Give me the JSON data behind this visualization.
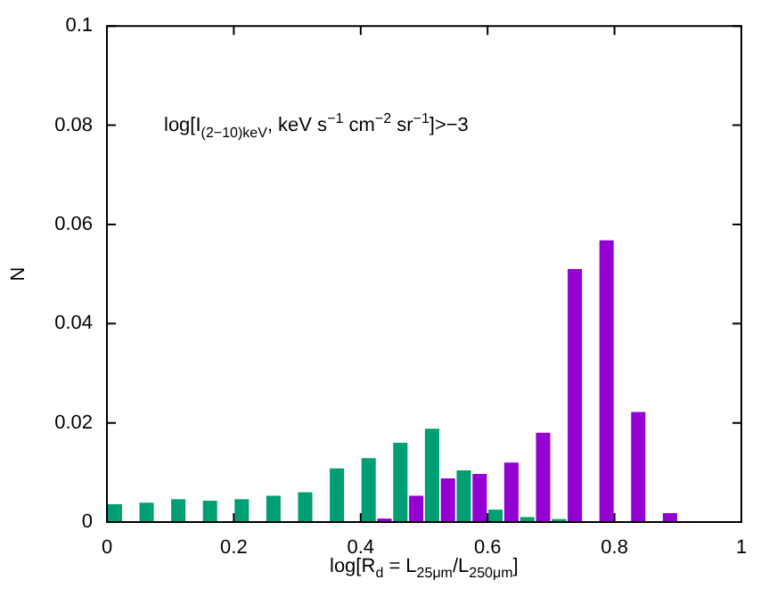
{
  "chart_data": {
    "type": "bar",
    "xlabel": "log[R$_{d}$ = L$_{25μm}$/L$_{250μm}$]",
    "ylabel": "N",
    "annotations": [
      "log[I$_{(2−10)keV}$, keV s$^{−1}$ cm$^{−2}$ sr$^{−1}$]>−3"
    ],
    "x": [
      0.025,
      0.075,
      0.125,
      0.175,
      0.225,
      0.275,
      0.325,
      0.375,
      0.425,
      0.475,
      0.525,
      0.575,
      0.625,
      0.675,
      0.725,
      0.775,
      0.825,
      0.875
    ],
    "series": [
      {
        "color": "#009e73",
        "values": [
          0.0036,
          0.0039,
          0.0046,
          0.0043,
          0.0046,
          0.0053,
          0.006,
          0.0108,
          0.0129,
          0.016,
          0.0188,
          0.0104,
          0.0025,
          0.001,
          0.0006,
          0,
          0,
          0
        ]
      },
      {
        "color": "#9400d3",
        "values": [
          0,
          0,
          0,
          0,
          0,
          0,
          0,
          0,
          0.0007,
          0.0053,
          0.0088,
          0.0097,
          0.012,
          0.018,
          0.051,
          0.0568,
          0.0222,
          0.0018
        ]
      }
    ],
    "xlim": [
      0,
      1
    ],
    "xticks": [
      0,
      0.2,
      0.4,
      0.6,
      0.8,
      1
    ],
    "ylim": [
      0,
      0.1
    ],
    "yticks": [
      0,
      0.02,
      0.04,
      0.06,
      0.08,
      0.1
    ],
    "grid": false,
    "legend": false
  }
}
